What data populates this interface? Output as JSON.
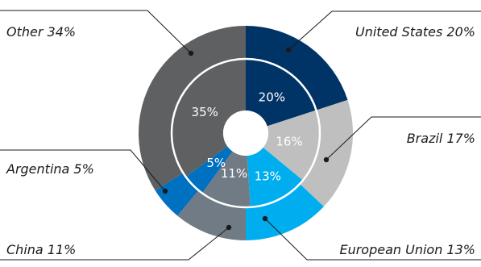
{
  "chart_data": {
    "type": "pie",
    "style": "double-ring donut",
    "title": "",
    "legend": "none",
    "series": [
      {
        "ring": "outer",
        "categories": [
          "United States",
          "Brazil",
          "European Union",
          "China",
          "Argentina",
          "Other"
        ],
        "values": [
          20,
          17,
          13,
          11,
          5,
          34
        ],
        "labels": [
          "United States 20%",
          "Brazil 17%",
          "European Union 13%",
          "China 11%",
          "Argentina 5%",
          "Other 34%"
        ]
      },
      {
        "ring": "inner",
        "categories": [
          "United States",
          "Brazil",
          "European Union",
          "China",
          "Argentina",
          "Other"
        ],
        "values": [
          20,
          16,
          13,
          11,
          5,
          35
        ],
        "labels": [
          "20%",
          "16%",
          "13%",
          "11%",
          "5%",
          "35%"
        ]
      }
    ],
    "colors": [
      "#003366",
      "#bfbfbf",
      "#00aeef",
      "#707b85",
      "#0070c0",
      "#5f6062"
    ]
  }
}
